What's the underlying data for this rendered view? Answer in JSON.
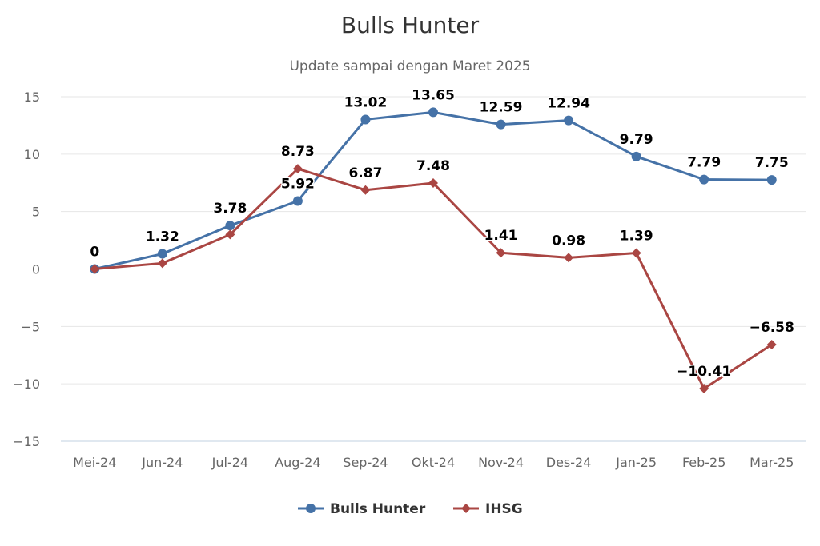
{
  "chart_data": {
    "type": "line",
    "title": "Bulls Hunter",
    "subtitle": "Update sampai dengan Maret 2025",
    "xlabel": "",
    "ylabel": "",
    "categories": [
      "Mei-24",
      "Jun-24",
      "Jul-24",
      "Aug-24",
      "Sep-24",
      "Okt-24",
      "Nov-24",
      "Des-24",
      "Jan-25",
      "Feb-25",
      "Mar-25"
    ],
    "ylim": [
      -15,
      15
    ],
    "yticks": [
      15,
      10,
      5,
      0,
      -5,
      -10,
      -15
    ],
    "ytick_labels": [
      "15",
      "10",
      "5",
      "0",
      "−5",
      "−10",
      "−15"
    ],
    "grid": true,
    "legend_position": "bottom-center",
    "series": [
      {
        "name": "Bulls Hunter",
        "color": "#4572a7",
        "marker": "circle",
        "values": [
          0,
          1.32,
          3.78,
          5.92,
          13.02,
          13.65,
          12.59,
          12.94,
          9.79,
          7.79,
          7.75
        ],
        "labels": [
          "0",
          "1.32",
          "3.78",
          "5.92",
          "13.02",
          "13.65",
          "12.59",
          "12.94",
          "9.79",
          "7.79",
          "7.75"
        ]
      },
      {
        "name": "IHSG",
        "color": "#aa4643",
        "marker": "diamond",
        "values": [
          0,
          0.5,
          3.0,
          8.73,
          6.87,
          7.48,
          1.41,
          0.98,
          1.39,
          -10.41,
          -6.58
        ],
        "labels": [
          "",
          "",
          "",
          "8.73",
          "6.87",
          "7.48",
          "1.41",
          "0.98",
          "1.39",
          "−10.41",
          "−6.58"
        ]
      }
    ]
  }
}
